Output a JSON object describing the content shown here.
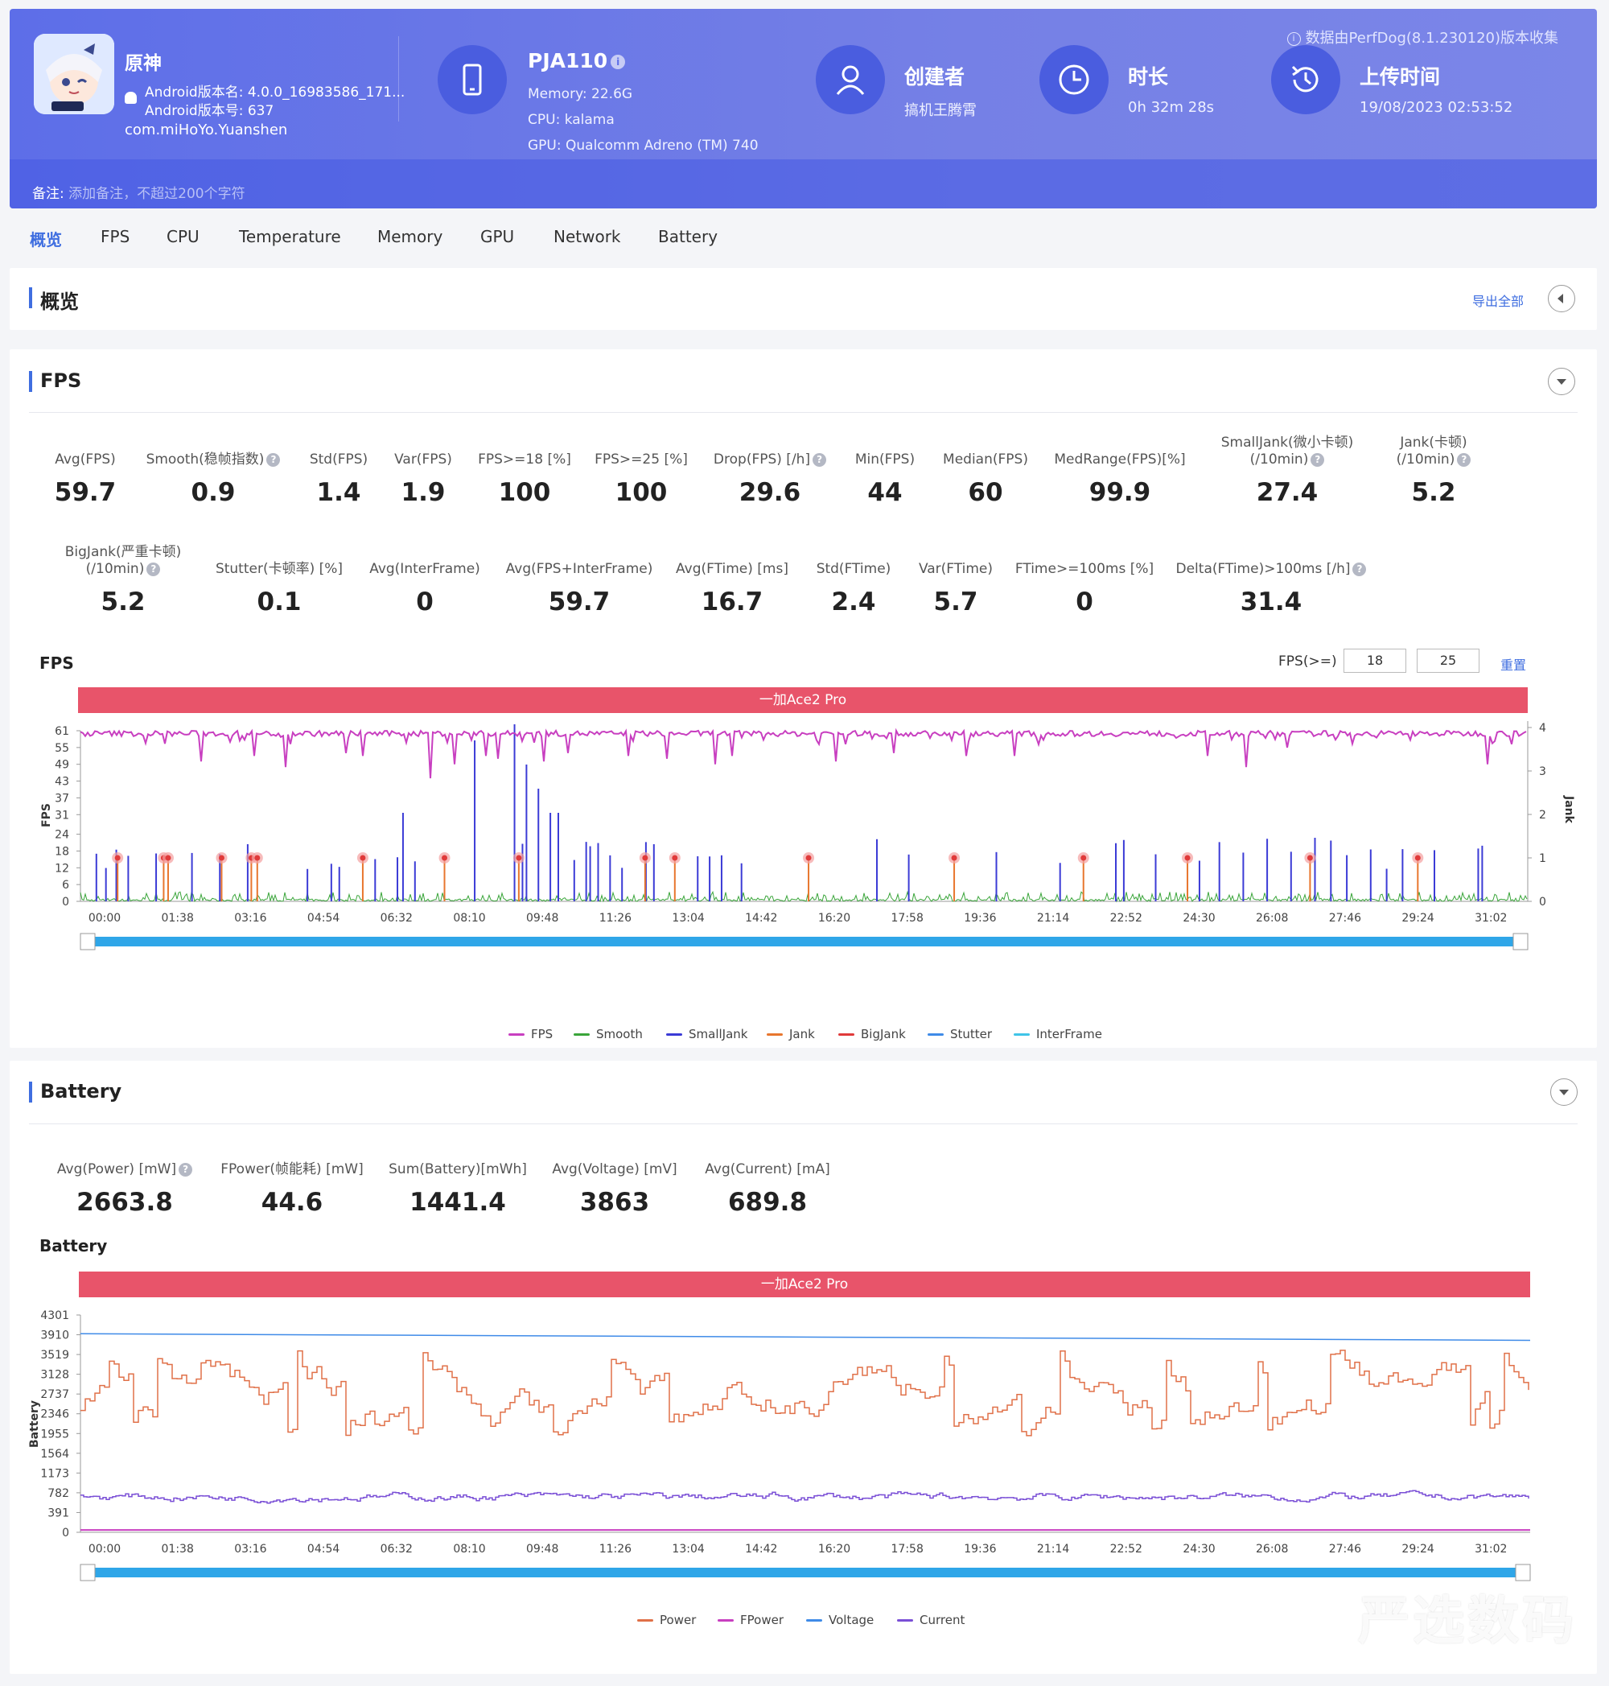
{
  "header": {
    "source_note": "数据由PerfDog(8.1.230120)版本收集",
    "app": {
      "name": "原神",
      "version_name": "Android版本名: 4.0.0_16983586_171...",
      "version_code": "Android版本号: 637",
      "package": "com.miHoYo.Yuanshen",
      "icon_name": "app-icon"
    },
    "device": {
      "name": "PJA110",
      "memory": "Memory: 22.6G",
      "cpu": "CPU: kalama",
      "gpu": "GPU: Qualcomm Adreno (TM) 740",
      "icon_name": "phone-icon"
    },
    "creator": {
      "label": "创建者",
      "value": "搞机王腾霄",
      "icon_name": "user-icon"
    },
    "duration": {
      "label": "时长",
      "value": "0h 32m 28s",
      "icon_name": "clock-icon"
    },
    "upload": {
      "label": "上传时间",
      "value": "19/08/2023 02:53:52",
      "icon_name": "history-icon"
    },
    "note_label": "备注:",
    "note_placeholder": "添加备注，不超过200个字符"
  },
  "tabs": [
    "概览",
    "FPS",
    "CPU",
    "Temperature",
    "Memory",
    "GPU",
    "Network",
    "Battery"
  ],
  "active_tab": "概览",
  "overview": {
    "title": "概览",
    "export_label": "导出全部"
  },
  "fps_section": {
    "title": "FPS",
    "metrics_row1": [
      {
        "label": "Avg(FPS)",
        "value": "59.7"
      },
      {
        "label": "Smooth(稳帧指数)",
        "value": "0.9",
        "help": true
      },
      {
        "label": "Std(FPS)",
        "value": "1.4"
      },
      {
        "label": "Var(FPS)",
        "value": "1.9"
      },
      {
        "label": "FPS>=18 [%]",
        "value": "100"
      },
      {
        "label": "FPS>=25 [%]",
        "value": "100"
      },
      {
        "label": "Drop(FPS) [/h]",
        "value": "29.6",
        "help": true
      },
      {
        "label": "Min(FPS)",
        "value": "44"
      },
      {
        "label": "Median(FPS)",
        "value": "60"
      },
      {
        "label": "MedRange(FPS)[%]",
        "value": "99.9"
      },
      {
        "label": "SmallJank(微小卡顿)",
        "label2": "(/10min)",
        "value": "27.4",
        "help": true
      },
      {
        "label": "Jank(卡顿)",
        "label2": "(/10min)",
        "value": "5.2",
        "help": true
      }
    ],
    "metrics_row2": [
      {
        "label": "BigJank(严重卡顿)",
        "label2": "(/10min)",
        "value": "5.2",
        "help": true
      },
      {
        "label": "Stutter(卡顿率) [%]",
        "value": "0.1"
      },
      {
        "label": "Avg(InterFrame)",
        "value": "0"
      },
      {
        "label": "Avg(FPS+InterFrame)",
        "value": "59.7"
      },
      {
        "label": "Avg(FTime) [ms]",
        "value": "16.7"
      },
      {
        "label": "Std(FTime)",
        "value": "2.4"
      },
      {
        "label": "Var(FTime)",
        "value": "5.7"
      },
      {
        "label": "FTime>=100ms [%]",
        "value": "0"
      },
      {
        "label": "Delta(FTime)>100ms [/h]",
        "value": "31.4",
        "help": true
      }
    ],
    "chart_title": "FPS",
    "threshold_label": "FPS(>=)",
    "threshold_1": "18",
    "threshold_2": "25",
    "reset_label": "重置",
    "device_banner": "一加Ace2 Pro",
    "legend": [
      {
        "name": "FPS",
        "color": "#c83fc0"
      },
      {
        "name": "Smooth",
        "color": "#3aa53a"
      },
      {
        "name": "SmallJank",
        "color": "#3b3bd6"
      },
      {
        "name": "Jank",
        "color": "#e8762e"
      },
      {
        "name": "BigJank",
        "color": "#e03a3a"
      },
      {
        "name": "Stutter",
        "color": "#3f8be8"
      },
      {
        "name": "InterFrame",
        "color": "#3fc4e8"
      }
    ]
  },
  "battery_section": {
    "title": "Battery",
    "metrics": [
      {
        "label": "Avg(Power) [mW]",
        "value": "2663.8",
        "help": true
      },
      {
        "label": "FPower(帧能耗) [mW]",
        "value": "44.6"
      },
      {
        "label": "Sum(Battery)[mWh]",
        "value": "1441.4"
      },
      {
        "label": "Avg(Voltage) [mV]",
        "value": "3863"
      },
      {
        "label": "Avg(Current) [mA]",
        "value": "689.8"
      }
    ],
    "chart_title": "Battery",
    "device_banner": "一加Ace2 Pro",
    "legend": [
      {
        "name": "Power",
        "color": "#e07048"
      },
      {
        "name": "FPower",
        "color": "#c83fc0"
      },
      {
        "name": "Voltage",
        "color": "#3f8be8"
      },
      {
        "name": "Current",
        "color": "#7a4fd6"
      }
    ]
  },
  "chart_data": [
    {
      "type": "line",
      "title": "FPS",
      "ylabel": "FPS",
      "y2label": "Jank",
      "x_ticks": [
        "00:00",
        "01:38",
        "03:16",
        "04:54",
        "06:32",
        "08:10",
        "09:48",
        "11:26",
        "13:04",
        "14:42",
        "16:20",
        "17:58",
        "19:36",
        "21:14",
        "22:52",
        "24:30",
        "26:08",
        "27:46",
        "29:24",
        "31:02"
      ],
      "y_ticks": [
        0,
        6,
        12,
        18,
        24,
        31,
        37,
        43,
        49,
        55,
        61
      ],
      "y2_ticks": [
        0,
        1,
        2,
        3,
        4
      ],
      "ylim": [
        0,
        61
      ],
      "y2lim": [
        0,
        4
      ],
      "series": [
        {
          "name": "FPS",
          "baseline": 60,
          "min": 44
        },
        {
          "name": "BigJank",
          "x": [
            "00:50",
            "01:52",
            "01:58",
            "03:10",
            "03:50",
            "03:58",
            "06:20",
            "08:10",
            "09:50",
            "12:40",
            "13:20",
            "16:20",
            "19:36",
            "22:30",
            "24:50",
            "27:35",
            "30:00"
          ],
          "values": [
            1,
            1,
            1,
            1,
            1,
            1,
            1,
            1,
            1,
            1,
            1,
            1,
            1,
            1,
            1,
            1,
            1
          ]
        }
      ]
    },
    {
      "type": "line",
      "title": "Battery",
      "ylabel": "Battery",
      "x_ticks": [
        "00:00",
        "01:38",
        "03:16",
        "04:54",
        "06:32",
        "08:10",
        "09:48",
        "11:26",
        "13:04",
        "14:42",
        "16:20",
        "17:58",
        "19:36",
        "21:14",
        "22:52",
        "24:30",
        "26:08",
        "27:46",
        "29:24",
        "31:02"
      ],
      "y_ticks": [
        0,
        391,
        782,
        1173,
        1564,
        1955,
        2346,
        2737,
        3128,
        3519,
        3910,
        4301
      ],
      "ylim": [
        0,
        4301
      ],
      "series": [
        {
          "name": "Voltage",
          "start": 3930,
          "end": 3800
        },
        {
          "name": "Power",
          "mean": 2663.8,
          "range": [
            1800,
            3650
          ]
        },
        {
          "name": "Current",
          "mean": 689.8,
          "range": [
            500,
            950
          ]
        },
        {
          "name": "FPower",
          "mean": 44.6
        }
      ]
    }
  ]
}
